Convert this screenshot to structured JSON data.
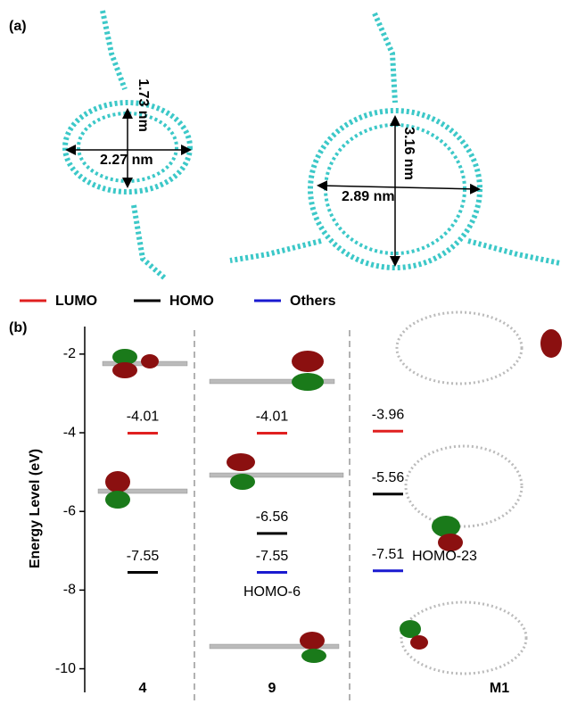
{
  "panel_labels": [
    "(a)",
    "(b)"
  ],
  "panel_a": {
    "measurements": [
      "1.73 nm",
      "2.27 nm",
      "3.16 nm",
      "2.89 nm"
    ]
  },
  "chart_data": {
    "type": "energy-level",
    "y_label": "Energy Level (eV)",
    "categories": [
      "4",
      "9",
      "M1"
    ],
    "series": [
      {
        "name": "LUMO",
        "color": "#e02020",
        "values": [
          -4.01,
          -4.01,
          -3.96
        ]
      },
      {
        "name": "HOMO",
        "color": "#000000",
        "values": [
          -7.55,
          -6.56,
          -5.56
        ]
      },
      {
        "name": "Others",
        "color": "#1a1ad0",
        "values": [
          null,
          -7.55,
          -7.51
        ]
      }
    ],
    "annotations": [
      "HOMO-6",
      "HOMO-23"
    ],
    "ylim": [
      -10.6,
      -1.3
    ],
    "yticks": [
      -2,
      -4,
      -6,
      -8,
      -10
    ],
    "grid": false
  }
}
